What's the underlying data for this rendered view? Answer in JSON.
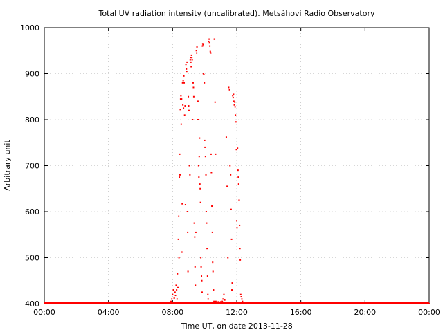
{
  "chart_data": {
    "type": "scatter",
    "title": "Total UV radiation intensity (uncalibrated). Metsähovi Radio Observatory",
    "xlabel": "Time UT, on date 2013-11-28",
    "ylabel": "Arbitrary unit",
    "x_unit": "hours UT",
    "xlim": [
      0,
      24
    ],
    "ylim": [
      400,
      1000
    ],
    "x_ticks": [
      {
        "value": 0,
        "label": "00:00"
      },
      {
        "value": 4,
        "label": "04:00"
      },
      {
        "value": 8,
        "label": "08:00"
      },
      {
        "value": 12,
        "label": "12:00"
      },
      {
        "value": 16,
        "label": "16:00"
      },
      {
        "value": 20,
        "label": "20:00"
      },
      {
        "value": 24,
        "label": "00:00"
      }
    ],
    "y_ticks": [
      {
        "value": 400,
        "label": "400"
      },
      {
        "value": 500,
        "label": "500"
      },
      {
        "value": 600,
        "label": "600"
      },
      {
        "value": 700,
        "label": "700"
      },
      {
        "value": 800,
        "label": "800"
      },
      {
        "value": 900,
        "label": "900"
      },
      {
        "value": 1000,
        "label": "1000"
      }
    ],
    "grid": true,
    "marker_color": "#ff0000",
    "series": [
      {
        "points": [
          [
            0.0,
            400
          ],
          [
            1.0,
            400
          ],
          [
            2.0,
            400
          ],
          [
            3.0,
            400
          ],
          [
            4.0,
            400
          ],
          [
            5.0,
            400
          ],
          [
            6.0,
            400
          ],
          [
            7.0,
            400
          ],
          [
            7.6,
            400
          ],
          [
            8.0,
            400
          ],
          [
            7.9,
            405
          ],
          [
            7.95,
            410
          ],
          [
            8.0,
            420
          ],
          [
            8.05,
            430
          ],
          [
            8.1,
            412
          ],
          [
            8.15,
            425
          ],
          [
            8.18,
            418
          ],
          [
            8.22,
            440
          ],
          [
            8.25,
            430
          ],
          [
            8.28,
            410
          ],
          [
            8.3,
            465
          ],
          [
            8.33,
            435
          ],
          [
            8.36,
            540
          ],
          [
            8.38,
            590
          ],
          [
            8.4,
            500
          ],
          [
            8.42,
            675
          ],
          [
            8.44,
            725
          ],
          [
            8.46,
            680
          ],
          [
            8.48,
            822
          ],
          [
            8.5,
            845
          ],
          [
            8.52,
            852
          ],
          [
            8.54,
            790
          ],
          [
            8.56,
            845
          ],
          [
            8.58,
            512
          ],
          [
            8.6,
            617
          ],
          [
            8.62,
            880
          ],
          [
            8.64,
            832
          ],
          [
            8.66,
            885
          ],
          [
            8.68,
            825
          ],
          [
            8.7,
            895
          ],
          [
            8.72,
            880
          ],
          [
            8.75,
            810
          ],
          [
            8.78,
            830
          ],
          [
            8.8,
            615
          ],
          [
            8.83,
            920
          ],
          [
            8.86,
            910
          ],
          [
            8.88,
            905
          ],
          [
            8.9,
            925
          ],
          [
            8.92,
            600
          ],
          [
            8.94,
            555
          ],
          [
            8.96,
            470
          ],
          [
            8.98,
            850
          ],
          [
            9.0,
            830
          ],
          [
            9.02,
            820
          ],
          [
            9.05,
            700
          ],
          [
            9.08,
            680
          ],
          [
            9.1,
            930
          ],
          [
            9.12,
            935
          ],
          [
            9.14,
            925
          ],
          [
            9.16,
            915
          ],
          [
            9.18,
            940
          ],
          [
            9.2,
            935
          ],
          [
            9.22,
            930
          ],
          [
            9.25,
            800
          ],
          [
            9.28,
            880
          ],
          [
            9.3,
            870
          ],
          [
            9.32,
            850
          ],
          [
            9.35,
            575
          ],
          [
            9.38,
            545
          ],
          [
            9.4,
            480
          ],
          [
            9.42,
            440
          ],
          [
            9.45,
            555
          ],
          [
            9.48,
            950
          ],
          [
            9.5,
            945
          ],
          [
            9.52,
            958
          ],
          [
            9.55,
            800
          ],
          [
            9.58,
            840
          ],
          [
            9.6,
            800
          ],
          [
            9.62,
            700
          ],
          [
            9.64,
            675
          ],
          [
            9.66,
            720
          ],
          [
            9.68,
            760
          ],
          [
            9.7,
            660
          ],
          [
            9.72,
            650
          ],
          [
            9.74,
            620
          ],
          [
            9.76,
            500
          ],
          [
            9.78,
            480
          ],
          [
            9.8,
            460
          ],
          [
            9.82,
            450
          ],
          [
            9.84,
            425
          ],
          [
            9.86,
            960
          ],
          [
            9.88,
            965
          ],
          [
            9.9,
            963
          ],
          [
            9.92,
            900
          ],
          [
            9.95,
            898
          ],
          [
            9.98,
            880
          ],
          [
            10.0,
            755
          ],
          [
            10.02,
            740
          ],
          [
            10.05,
            720
          ],
          [
            10.08,
            680
          ],
          [
            10.1,
            600
          ],
          [
            10.12,
            575
          ],
          [
            10.15,
            520
          ],
          [
            10.18,
            460
          ],
          [
            10.2,
            420
          ],
          [
            10.22,
            410
          ],
          [
            10.25,
            970
          ],
          [
            10.28,
            975
          ],
          [
            10.3,
            968
          ],
          [
            10.32,
            960
          ],
          [
            10.35,
            948
          ],
          [
            10.38,
            945
          ],
          [
            10.4,
            725
          ],
          [
            10.42,
            685
          ],
          [
            10.45,
            612
          ],
          [
            10.48,
            555
          ],
          [
            10.5,
            490
          ],
          [
            10.52,
            470
          ],
          [
            10.55,
            430
          ],
          [
            10.58,
            405
          ],
          [
            10.6,
            975
          ],
          [
            10.62,
            975
          ],
          [
            10.65,
            838
          ],
          [
            10.68,
            725
          ],
          [
            10.7,
            405
          ],
          [
            10.75,
            403
          ],
          [
            10.8,
            402
          ],
          [
            10.85,
            404
          ],
          [
            10.9,
            403
          ],
          [
            10.95,
            402
          ],
          [
            11.0,
            404
          ],
          [
            11.05,
            402
          ],
          [
            11.1,
            405
          ],
          [
            11.15,
            410
          ],
          [
            11.2,
            420
          ],
          [
            11.25,
            408
          ],
          [
            11.3,
            403
          ],
          [
            11.35,
            762
          ],
          [
            11.4,
            655
          ],
          [
            11.45,
            500
          ],
          [
            11.5,
            870
          ],
          [
            11.55,
            865
          ],
          [
            11.58,
            700
          ],
          [
            11.62,
            680
          ],
          [
            11.65,
            605
          ],
          [
            11.68,
            540
          ],
          [
            11.7,
            430
          ],
          [
            11.72,
            445
          ],
          [
            11.75,
            852
          ],
          [
            11.78,
            848
          ],
          [
            11.8,
            855
          ],
          [
            11.82,
            840
          ],
          [
            11.85,
            832
          ],
          [
            11.88,
            838
          ],
          [
            11.9,
            828
          ],
          [
            11.92,
            810
          ],
          [
            11.95,
            795
          ],
          [
            11.98,
            735
          ],
          [
            12.0,
            580
          ],
          [
            12.02,
            565
          ],
          [
            12.05,
            738
          ],
          [
            12.08,
            690
          ],
          [
            12.1,
            675
          ],
          [
            12.12,
            660
          ],
          [
            12.15,
            625
          ],
          [
            12.18,
            570
          ],
          [
            12.2,
            520
          ],
          [
            12.22,
            495
          ],
          [
            12.25,
            420
          ],
          [
            12.28,
            415
          ],
          [
            12.32,
            410
          ],
          [
            12.36,
            405
          ],
          [
            12.4,
            402
          ],
          [
            12.5,
            400
          ],
          [
            13.0,
            400
          ],
          [
            14.0,
            400
          ],
          [
            15.0,
            400
          ],
          [
            16.0,
            400
          ],
          [
            17.0,
            400
          ],
          [
            18.0,
            400
          ],
          [
            19.0,
            400
          ],
          [
            20.0,
            400
          ],
          [
            21.0,
            400
          ],
          [
            22.0,
            400
          ],
          [
            23.0,
            400
          ],
          [
            24.0,
            400
          ]
        ]
      }
    ]
  }
}
